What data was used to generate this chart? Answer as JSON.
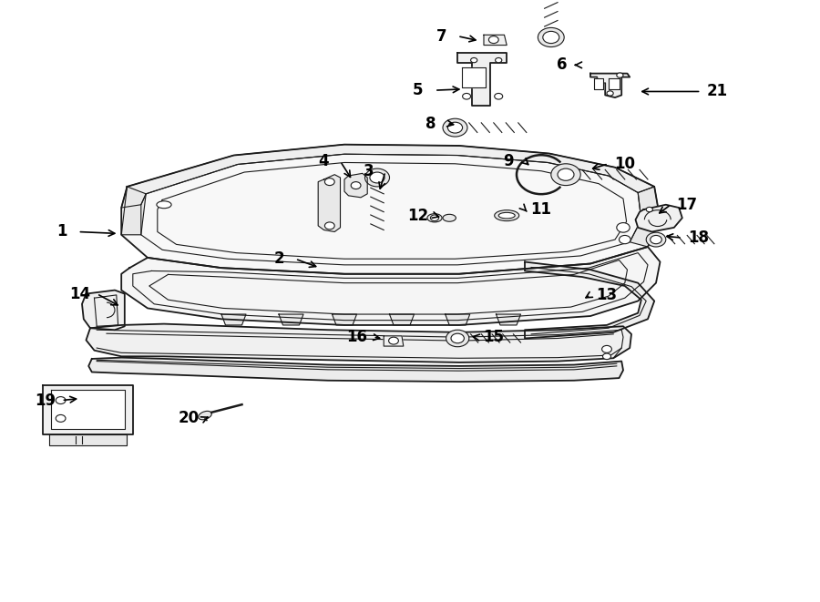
{
  "bg_color": "#ffffff",
  "line_color": "#1a1a1a",
  "label_positions": {
    "1": [
      0.075,
      0.385,
      0.145,
      0.388
    ],
    "2": [
      0.34,
      0.43,
      0.39,
      0.445
    ],
    "3": [
      0.45,
      0.285,
      0.462,
      0.32
    ],
    "4": [
      0.395,
      0.268,
      0.43,
      0.3
    ],
    "5": [
      0.51,
      0.15,
      0.565,
      0.148
    ],
    "6": [
      0.685,
      0.108,
      0.7,
      0.108
    ],
    "7": [
      0.538,
      0.06,
      0.585,
      0.068
    ],
    "8": [
      0.525,
      0.205,
      0.558,
      0.208
    ],
    "9": [
      0.62,
      0.268,
      0.648,
      0.278
    ],
    "10": [
      0.762,
      0.272,
      0.718,
      0.282
    ],
    "11": [
      0.66,
      0.348,
      0.645,
      0.355
    ],
    "12": [
      0.51,
      0.358,
      0.54,
      0.362
    ],
    "13": [
      0.74,
      0.49,
      0.71,
      0.498
    ],
    "14": [
      0.098,
      0.488,
      0.148,
      0.51
    ],
    "15": [
      0.602,
      0.56,
      0.572,
      0.558
    ],
    "16": [
      0.435,
      0.56,
      0.468,
      0.563
    ],
    "17": [
      0.838,
      0.34,
      0.8,
      0.358
    ],
    "18": [
      0.852,
      0.395,
      0.808,
      0.392
    ],
    "19": [
      0.055,
      0.665,
      0.098,
      0.662
    ],
    "20": [
      0.23,
      0.695,
      0.255,
      0.692
    ],
    "21": [
      0.875,
      0.152,
      0.778,
      0.152
    ]
  }
}
